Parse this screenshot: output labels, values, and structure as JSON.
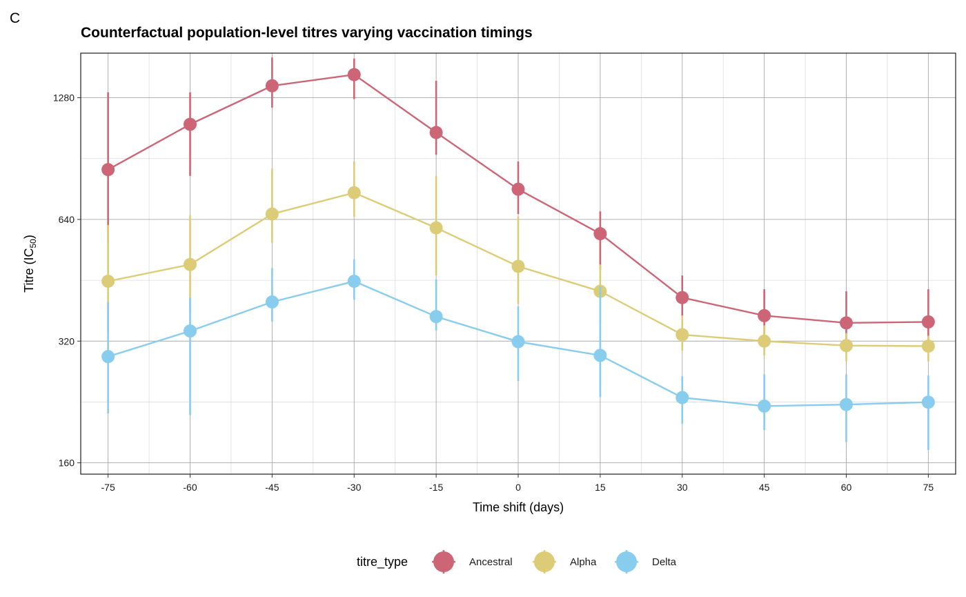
{
  "panel_tag": "C",
  "chart_data": {
    "type": "line",
    "title": "Counterfactual population-level titres varying vaccination timings",
    "xlabel": "Time shift (days)",
    "ylabel": "Titre (IC50)",
    "ylabel_main": "Titre (IC",
    "ylabel_sub": "50",
    "ylabel_close": ")",
    "y_scale": "log2",
    "xlim": [
      -80,
      80
    ],
    "ylim": [
      150,
      1650
    ],
    "x_ticks": [
      -75,
      -60,
      -45,
      -30,
      -15,
      0,
      15,
      30,
      45,
      60,
      75
    ],
    "y_ticks": [
      160,
      320,
      640,
      1280
    ],
    "grid": true,
    "legend_position": "bottom",
    "legend_title": "titre_type",
    "x": [
      -75,
      -60,
      -45,
      -30,
      -15,
      0,
      15,
      30,
      45,
      60,
      75
    ],
    "series": [
      {
        "name": "Ancestral",
        "color": "#CC6677",
        "values": [
          850,
          1100,
          1370,
          1460,
          1050,
          760,
          590,
          410,
          370,
          355,
          357
        ],
        "lower": [
          560,
          820,
          1210,
          1270,
          925,
          660,
          480,
          370,
          325,
          310,
          310
        ],
        "upper": [
          1320,
          1320,
          1610,
          1600,
          1410,
          890,
          670,
          465,
          430,
          425,
          430
        ]
      },
      {
        "name": "Alpha",
        "color": "#DDCC77",
        "values": [
          450,
          495,
          660,
          745,
          610,
          490,
          425,
          332,
          320,
          312,
          311
        ],
        "lower": [
          335,
          375,
          560,
          650,
          465,
          395,
          355,
          303,
          295,
          285,
          285
        ],
        "upper": [
          620,
          655,
          855,
          890,
          820,
          650,
          495,
          370,
          350,
          335,
          330
        ]
      },
      {
        "name": "Delta",
        "color": "#88CCEE",
        "values": [
          293,
          339,
          400,
          450,
          368,
          319,
          295,
          232,
          221,
          223,
          226
        ],
        "lower": [
          212,
          210,
          358,
          405,
          340,
          255,
          233,
          200,
          193,
          180,
          172
        ],
        "upper": [
          400,
          410,
          485,
          510,
          455,
          390,
          437,
          262,
          265,
          265,
          263
        ]
      }
    ]
  }
}
